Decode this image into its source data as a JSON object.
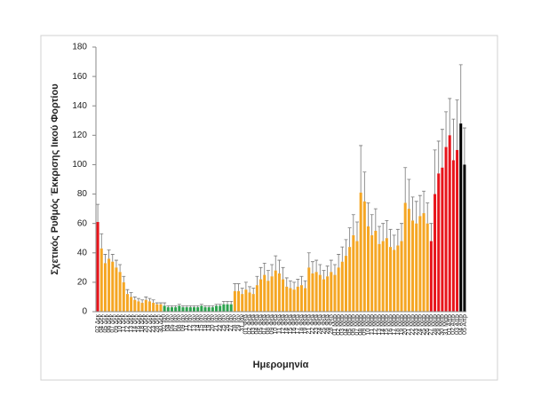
{
  "chart_data": {
    "type": "bar",
    "ylabel": "Σχετικός Ρυθμός Έκκρισης Ιικού Φορτίου",
    "xlabel": "Ημερομηνία",
    "categories": [
      "02 Δεκ",
      "04 Δεκ",
      "05 Δεκ",
      "06 Δεκ",
      "07 Δεκ",
      "09 Δεκ",
      "10 Δεκ",
      "11 Δεκ",
      "12 Δεκ",
      "13 Δεκ",
      "14 Δεκ",
      "16 Δεκ",
      "18 Δεκ",
      "20 Δεκ",
      "22 Δεκ",
      "23 Δεκ",
      "28 Δεκ",
      "30 Δεκ",
      "02 Ιαν",
      "04 Ιαν",
      "05 Ιαν",
      "07 Ιαν",
      "08 Ιαν",
      "09 Ιαν",
      "11 Ιαν",
      "12 Ιαν",
      "13 Ιαν",
      "14 Ιαν",
      "15 Ιαν",
      "18 Ιαν",
      "19 Ιαν",
      "20 Ιαν",
      "21 Ιαν",
      "22 Ιαν",
      "25 Ιαν",
      "26 Ιαν",
      "27 Ιαν",
      "28 Ιαν",
      "29 Ιαν",
      "31 Ιαν",
      "01 Φεβ",
      "02 Φεβ",
      "03 Φεβ",
      "04 Φεβ",
      "05 Φεβ",
      "07 Φεβ",
      "08 Φεβ",
      "09 Φεβ",
      "10 Φεβ",
      "11 Φεβ",
      "12 Φεβ",
      "14 Φεβ",
      "15 Φεβ",
      "16 Φεβ",
      "17 Φεβ",
      "18 Φεβ",
      "19 Φεβ",
      "21 Φεβ",
      "22 Φεβ",
      "23 Φεβ",
      "24 Φεβ",
      "25 Φεβ",
      "26 Φεβ",
      "28 Φεβ",
      "01 Μαρ",
      "02 Μαρ",
      "03 Μαρ",
      "04 Μαρ",
      "05 Μαρ",
      "06 Μαρ",
      "07 Μαρ",
      "08 Μαρ",
      "09 Μαρ",
      "10 Μαρ",
      "11 Μαρ",
      "12 Μαρ",
      "13 Μαρ",
      "14 Μαρ",
      "15 Μαρ",
      "16 Μαρ",
      "17 Μαρ",
      "18 Μαρ",
      "19 Μαρ",
      "20 Μαρ",
      "21 Μαρ",
      "22 Μαρ",
      "23 Μαρ",
      "24 Μαρ",
      "25 Μαρ",
      "26 Μαρ",
      "27 Μαρ",
      "28 Μαρ",
      "29 Μαρ",
      "30 Μαρ",
      "31 Μαρ",
      "01 Απρ",
      "02 Απρ",
      "03 Απρ",
      "04 Απρ",
      "05 Απρ"
    ],
    "values": [
      61,
      43,
      33,
      36,
      34,
      30,
      27,
      20,
      12,
      10,
      8,
      7,
      6,
      8,
      7,
      6,
      5,
      5,
      4,
      3,
      3,
      3,
      4,
      3,
      3,
      3,
      3,
      3,
      4,
      3,
      3,
      3,
      4,
      4,
      5,
      5,
      5,
      14,
      14,
      12,
      15,
      13,
      12,
      18,
      22,
      25,
      21,
      24,
      28,
      26,
      22,
      17,
      16,
      15,
      17,
      18,
      16,
      30,
      26,
      27,
      25,
      22,
      24,
      27,
      25,
      30,
      34,
      38,
      44,
      52,
      48,
      81,
      75,
      58,
      52,
      55,
      46,
      48,
      50,
      44,
      42,
      45,
      48,
      74,
      70,
      62,
      60,
      65,
      67,
      60,
      48,
      80,
      94,
      98,
      112,
      120,
      103,
      110,
      128,
      100
    ],
    "errors": [
      12,
      10,
      6,
      6,
      5,
      5,
      5,
      4,
      3,
      3,
      2,
      2,
      2,
      2,
      2,
      2,
      1,
      1,
      2,
      1,
      1,
      1,
      1,
      1,
      1,
      1,
      1,
      1,
      1,
      1,
      1,
      1,
      1,
      1,
      2,
      2,
      2,
      5,
      5,
      4,
      5,
      4,
      4,
      6,
      8,
      8,
      7,
      8,
      10,
      9,
      8,
      6,
      5,
      5,
      5,
      6,
      5,
      10,
      8,
      8,
      7,
      6,
      7,
      8,
      7,
      9,
      10,
      11,
      13,
      14,
      13,
      32,
      20,
      16,
      14,
      15,
      12,
      12,
      12,
      12,
      10,
      11,
      12,
      24,
      20,
      16,
      15,
      14,
      15,
      14,
      12,
      30,
      22,
      26,
      24,
      25,
      28,
      34,
      40,
      25
    ],
    "colors": [
      "#e8141b",
      "#f5a623",
      "#f5a623",
      "#f5a623",
      "#f5a623",
      "#f5a623",
      "#f5a623",
      "#f5a623",
      "#f5a623",
      "#f5a623",
      "#f5a623",
      "#f5a623",
      "#f5a623",
      "#f5a623",
      "#f5a623",
      "#f5a623",
      "#f5a623",
      "#f5a623",
      "#2ea44f",
      "#2ea44f",
      "#2ea44f",
      "#2ea44f",
      "#2ea44f",
      "#2ea44f",
      "#2ea44f",
      "#2ea44f",
      "#2ea44f",
      "#2ea44f",
      "#2ea44f",
      "#2ea44f",
      "#2ea44f",
      "#2ea44f",
      "#2ea44f",
      "#2ea44f",
      "#2ea44f",
      "#2ea44f",
      "#2ea44f",
      "#f5a623",
      "#f5a623",
      "#f5a623",
      "#f5a623",
      "#f5a623",
      "#f5a623",
      "#f5a623",
      "#f5a623",
      "#f5a623",
      "#f5a623",
      "#f5a623",
      "#f5a623",
      "#f5a623",
      "#f5a623",
      "#f5a623",
      "#f5a623",
      "#f5a623",
      "#f5a623",
      "#f5a623",
      "#f5a623",
      "#f5a623",
      "#f5a623",
      "#f5a623",
      "#f5a623",
      "#f5a623",
      "#f5a623",
      "#f5a623",
      "#f5a623",
      "#f5a623",
      "#f5a623",
      "#f5a623",
      "#f5a623",
      "#f5a623",
      "#f5a623",
      "#f5a623",
      "#f5a623",
      "#f5a623",
      "#f5a623",
      "#f5a623",
      "#f5a623",
      "#f5a623",
      "#f5a623",
      "#f5a623",
      "#f5a623",
      "#f5a623",
      "#f5a623",
      "#f5a623",
      "#f5a623",
      "#f5a623",
      "#f5a623",
      "#f5a623",
      "#f5a623",
      "#f5a623",
      "#e8141b",
      "#e8141b",
      "#e8141b",
      "#e8141b",
      "#e8141b",
      "#e8141b",
      "#e8141b",
      "#e8141b"
    ],
    "ylim": [
      0,
      180
    ],
    "yticks": [
      0,
      20,
      40,
      60,
      80,
      100,
      120,
      140,
      160,
      180
    ],
    "grid": false
  }
}
